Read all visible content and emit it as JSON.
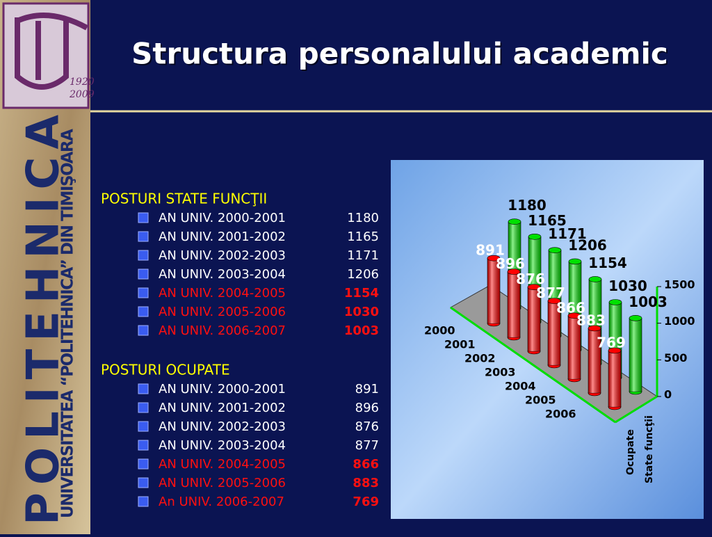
{
  "sidebar": {
    "logo_years": [
      "1920",
      "2009"
    ],
    "name": "POLITEHNICA",
    "university": "UNIVERSITATEA “POLITEHNICA” DIN TIMIŞOARA"
  },
  "title": "Structura personalului academic",
  "sections": [
    {
      "heading": "POSTURI STATE FUNCŢII",
      "items": [
        {
          "label": "AN UNIV. 2000-2001",
          "value": 1180,
          "highlight": false
        },
        {
          "label": "AN UNIV. 2001-2002",
          "value": 1165,
          "highlight": false
        },
        {
          "label": "AN UNIV. 2002-2003",
          "value": 1171,
          "highlight": false
        },
        {
          "label": "AN UNIV. 2003-2004",
          "value": 1206,
          "highlight": false
        },
        {
          "label": "AN UNIV. 2004-2005",
          "value": 1154,
          "highlight": true
        },
        {
          "label": "AN UNIV. 2005-2006",
          "value": 1030,
          "highlight": true
        },
        {
          "label": "AN UNIV. 2006-2007",
          "value": 1003,
          "highlight": true
        }
      ]
    },
    {
      "heading": "POSTURI OCUPATE",
      "items": [
        {
          "label": "AN UNIV. 2000-2001",
          "value": 891,
          "highlight": false
        },
        {
          "label": "AN UNIV. 2001-2002",
          "value": 896,
          "highlight": false
        },
        {
          "label": "AN UNIV. 2002-2003",
          "value": 876,
          "highlight": false
        },
        {
          "label": "AN UNIV. 2003-2004",
          "value": 877,
          "highlight": false
        },
        {
          "label": "AN UNIV. 2004-2005",
          "value": 866,
          "highlight": true
        },
        {
          "label": "AN UNIV. 2005-2006",
          "value": 883,
          "highlight": true
        },
        {
          "label": "An UNIV. 2006-2007",
          "value": 769,
          "highlight": true
        }
      ]
    }
  ],
  "chart_data": {
    "type": "bar3d",
    "categories": [
      "2000",
      "2001",
      "2002",
      "2003",
      "2004",
      "2005",
      "2006"
    ],
    "series": [
      {
        "name": "Ocupate",
        "color": "#ff0000",
        "values": [
          891,
          896,
          876,
          877,
          866,
          883,
          769
        ]
      },
      {
        "name": "State funcţii",
        "color": "#00e000",
        "values": [
          1180,
          1165,
          1171,
          1206,
          1154,
          1030,
          1003
        ]
      }
    ],
    "ylim": [
      0,
      1500
    ],
    "yticks": [
      0,
      500,
      1000,
      1500
    ]
  }
}
